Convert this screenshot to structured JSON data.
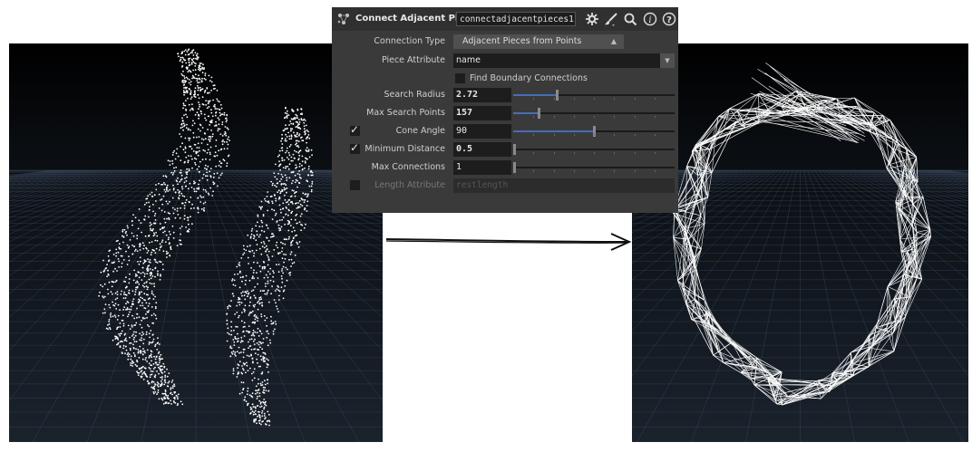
{
  "node": {
    "title": "Connect Adjacent Pieces",
    "name": "connectadjacentpieces1"
  },
  "parameters": {
    "connection_type": {
      "label": "Connection Type",
      "value": "Adjacent Pieces from Points"
    },
    "piece_attribute": {
      "label": "Piece Attribute",
      "value": "name"
    },
    "find_boundary": {
      "label": "Find Boundary Connections",
      "checked": false
    },
    "search_radius": {
      "label": "Search Radius",
      "value": "2.72",
      "slider_fraction": 0.27
    },
    "max_search_points": {
      "label": "Max Search Points",
      "value": "157",
      "slider_fraction": 0.16
    },
    "cone_angle": {
      "label": "Cone Angle",
      "value": "90",
      "enabled": true,
      "slider_fraction": 0.5
    },
    "minimum_distance": {
      "label": "Minimum Distance",
      "value": "0.5",
      "enabled": true,
      "slider_fraction": 0.0
    },
    "max_connections": {
      "label": "Max Connections",
      "value": "1",
      "slider_fraction": 0.0
    },
    "length_attribute": {
      "label": "Length Attribute",
      "value": "restlength",
      "enabled": false
    }
  },
  "colors": {
    "panel_bg": "#3a3a3a",
    "field_bg": "#1d1d1d",
    "slider_fill": "#3f6fbf",
    "viewport_bg": "#000000",
    "grid": "#4a5a70",
    "points": "#ffffff"
  },
  "icons": [
    "node-icon",
    "gear-icon",
    "brush-icon",
    "magnifier-icon",
    "info-icon",
    "help-icon",
    "chevron-down-icon",
    "checkmark-icon",
    "right-arrow-icon"
  ]
}
